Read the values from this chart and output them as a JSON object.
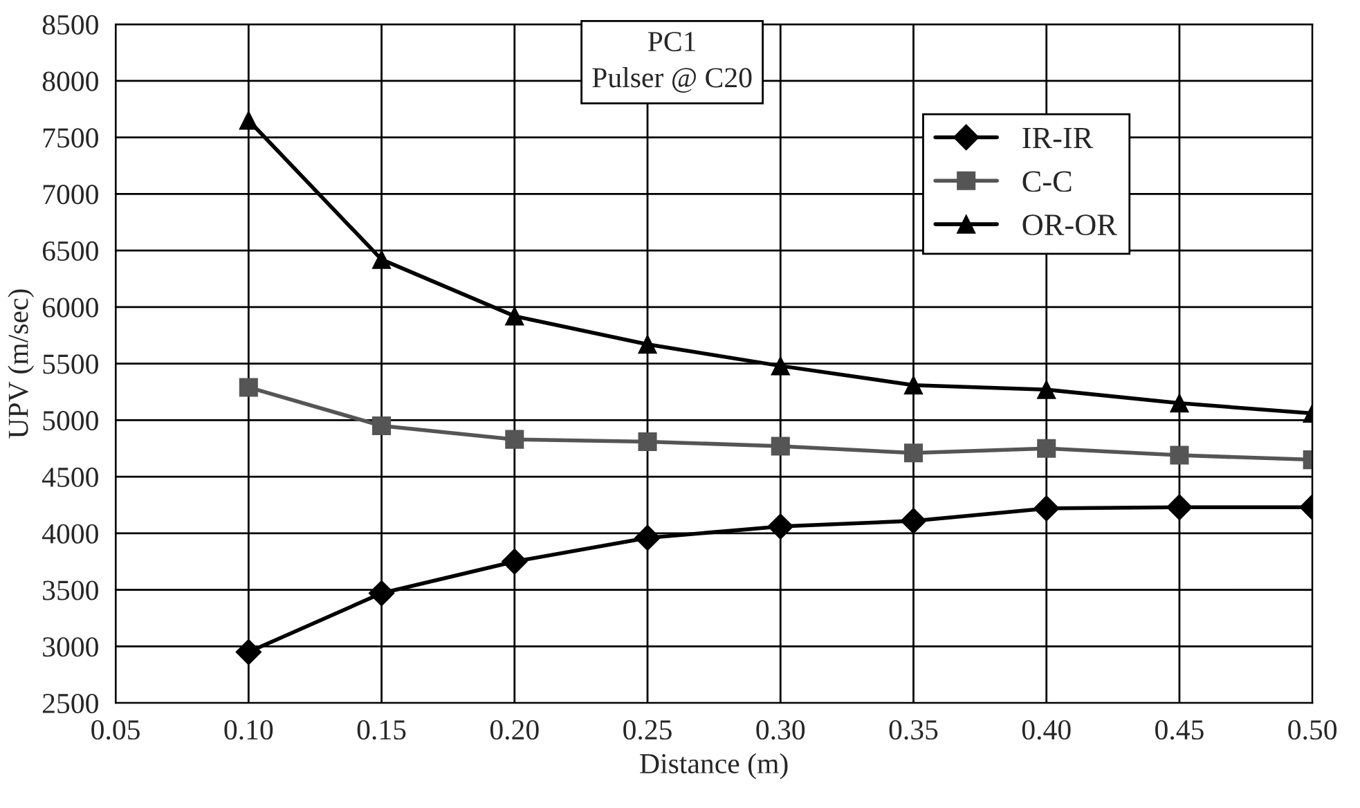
{
  "chart_data": {
    "type": "line",
    "title": "PC1\nPulser @ C20",
    "xlabel": "Distance (m)",
    "ylabel": "UPV (m/sec)",
    "x": [
      0.1,
      0.15,
      0.2,
      0.25,
      0.3,
      0.35,
      0.4,
      0.45,
      0.5
    ],
    "series": [
      {
        "name": "IR-IR",
        "color": "#000000",
        "marker": "diamond",
        "values": [
          2950,
          3470,
          3750,
          3960,
          4060,
          4110,
          4220,
          4230,
          4230
        ]
      },
      {
        "name": "C-C",
        "color": "#555555",
        "marker": "square",
        "values": [
          5290,
          4950,
          4830,
          4810,
          4770,
          4710,
          4750,
          4690,
          4650
        ]
      },
      {
        "name": "OR-OR",
        "color": "#000000",
        "marker": "triangle",
        "values": [
          7650,
          6420,
          5920,
          5670,
          5480,
          5310,
          5270,
          5150,
          5060
        ]
      }
    ],
    "xlim": [
      0.05,
      0.5
    ],
    "xticks": [
      {
        "value": 0.05,
        "label": "0.05"
      },
      {
        "value": 0.1,
        "label": "0.10"
      },
      {
        "value": 0.15,
        "label": "0.15"
      },
      {
        "value": 0.2,
        "label": "0.20"
      },
      {
        "value": 0.25,
        "label": "0.25"
      },
      {
        "value": 0.3,
        "label": "0.30"
      },
      {
        "value": 0.35,
        "label": "0.35"
      },
      {
        "value": 0.4,
        "label": "0.40"
      },
      {
        "value": 0.45,
        "label": "0.45"
      },
      {
        "value": 0.5,
        "label": "0.50"
      }
    ],
    "ylim": [
      2500,
      8500
    ],
    "yticks": [
      2500,
      3000,
      3500,
      4000,
      4500,
      5000,
      5500,
      6000,
      6500,
      7000,
      7500,
      8000,
      8500
    ],
    "grid": true,
    "legend": "top right",
    "line_style": "solid"
  }
}
